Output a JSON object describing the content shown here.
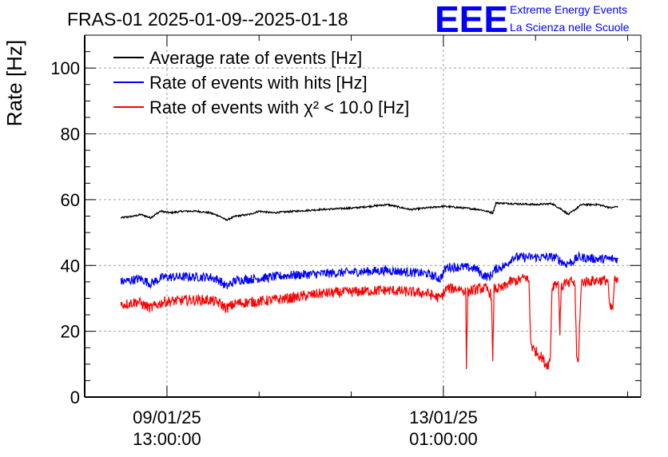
{
  "chart_data": {
    "type": "line",
    "title": "FRAS-01 2025-01-09--2025-01-18",
    "ylabel": "Rate [Hz]",
    "xlabel": "",
    "ylim": [
      0,
      110
    ],
    "y_ticks": [
      0,
      20,
      40,
      60,
      80,
      100
    ],
    "grid": true,
    "legend_position": "top-left",
    "x_ticks": [
      {
        "date": "09/01/25",
        "time": "13:00:00",
        "hours_from_start": 13
      },
      {
        "date": "13/01/25",
        "time": "01:00:00",
        "hours_from_start": 97
      }
    ],
    "x_range_hours": [
      -12,
      157
    ],
    "series": [
      {
        "name": "Average rate of events [Hz]",
        "color": "#000000",
        "noise": 0.25,
        "points": [
          [
            -1,
            54.5
          ],
          [
            3,
            55
          ],
          [
            5,
            55.5
          ],
          [
            8,
            54.5
          ],
          [
            11,
            56.5
          ],
          [
            14,
            56
          ],
          [
            18,
            56.5
          ],
          [
            22,
            56.5
          ],
          [
            26,
            56
          ],
          [
            29,
            55
          ],
          [
            31,
            53.8
          ],
          [
            34,
            55
          ],
          [
            38,
            55.5
          ],
          [
            41,
            56.5
          ],
          [
            45,
            56
          ],
          [
            52,
            56.5
          ],
          [
            60,
            57
          ],
          [
            70,
            57.5
          ],
          [
            80,
            58.5
          ],
          [
            87,
            57
          ],
          [
            92,
            57.5
          ],
          [
            97,
            58
          ],
          [
            103,
            57.5
          ],
          [
            108,
            57
          ],
          [
            112,
            56
          ],
          [
            113,
            59
          ],
          [
            118,
            58.8
          ],
          [
            125,
            58.5
          ],
          [
            130,
            58.8
          ],
          [
            133,
            57
          ],
          [
            135,
            55.5
          ],
          [
            137,
            57
          ],
          [
            139,
            58.5
          ],
          [
            144,
            58.5
          ],
          [
            148,
            57.5
          ],
          [
            150,
            58
          ]
        ]
      },
      {
        "name": "Rate of events with hits [Hz]",
        "color": "#0000ff",
        "noise": 1.4,
        "points": [
          [
            -1,
            35
          ],
          [
            5,
            36
          ],
          [
            8,
            34.5
          ],
          [
            12,
            36.5
          ],
          [
            20,
            36.5
          ],
          [
            26,
            36.5
          ],
          [
            29,
            35.5
          ],
          [
            31,
            33.5
          ],
          [
            34,
            35.5
          ],
          [
            40,
            36
          ],
          [
            50,
            37
          ],
          [
            60,
            37.5
          ],
          [
            70,
            38
          ],
          [
            80,
            38.5
          ],
          [
            86,
            38
          ],
          [
            92,
            37.5
          ],
          [
            96,
            36
          ],
          [
            98,
            39.5
          ],
          [
            103,
            39.5
          ],
          [
            107,
            39
          ],
          [
            109,
            37
          ],
          [
            111,
            36.5
          ],
          [
            113,
            39
          ],
          [
            116,
            40
          ],
          [
            118,
            42.5
          ],
          [
            125,
            42.5
          ],
          [
            131,
            42.5
          ],
          [
            134,
            40.5
          ],
          [
            136,
            41
          ],
          [
            138,
            42.5
          ],
          [
            144,
            42
          ],
          [
            150,
            42
          ]
        ]
      },
      {
        "name": "Rate of events with χ² < 10.0 [Hz]",
        "color": "#ff0000",
        "noise": 1.6,
        "points": [
          [
            -1,
            28
          ],
          [
            4,
            29
          ],
          [
            8,
            27
          ],
          [
            12,
            29
          ],
          [
            20,
            29.5
          ],
          [
            26,
            29.5
          ],
          [
            29,
            28.5
          ],
          [
            31,
            27
          ],
          [
            34,
            28.5
          ],
          [
            40,
            29
          ],
          [
            50,
            30
          ],
          [
            60,
            31.5
          ],
          [
            70,
            32
          ],
          [
            80,
            32.5
          ],
          [
            86,
            32
          ],
          [
            92,
            31.5
          ],
          [
            96,
            30
          ],
          [
            98,
            33
          ],
          [
            102,
            33
          ],
          [
            103.8,
            32
          ],
          [
            104,
            9.5
          ],
          [
            104.4,
            32
          ],
          [
            108,
            33
          ],
          [
            110,
            33
          ],
          [
            111.6,
            31
          ],
          [
            112,
            10
          ],
          [
            112.4,
            33
          ],
          [
            115,
            33
          ],
          [
            117,
            35
          ],
          [
            120,
            35.5
          ],
          [
            122,
            36.5
          ],
          [
            123,
            35
          ],
          [
            123.5,
            18
          ],
          [
            124,
            15
          ],
          [
            126,
            13
          ],
          [
            127,
            12
          ],
          [
            128,
            10
          ],
          [
            129,
            10
          ],
          [
            129.5,
            12
          ],
          [
            130,
            33
          ],
          [
            131,
            35
          ],
          [
            132,
            34
          ],
          [
            132.4,
            20
          ],
          [
            132.8,
            33
          ],
          [
            134,
            35
          ],
          [
            135,
            34
          ],
          [
            136,
            35.5
          ],
          [
            137,
            34
          ],
          [
            137.5,
            12
          ],
          [
            138,
            10
          ],
          [
            138.5,
            25
          ],
          [
            139,
            35
          ],
          [
            144,
            35.5
          ],
          [
            147,
            35.5
          ],
          [
            147.5,
            27
          ],
          [
            148.5,
            27
          ],
          [
            149,
            35.5
          ],
          [
            150,
            35
          ]
        ]
      }
    ]
  },
  "logo": {
    "letters": "EEE",
    "line1": "Extreme Energy Events",
    "line2": "La Scienza nelle Scuole",
    "color": "#0000ff"
  }
}
